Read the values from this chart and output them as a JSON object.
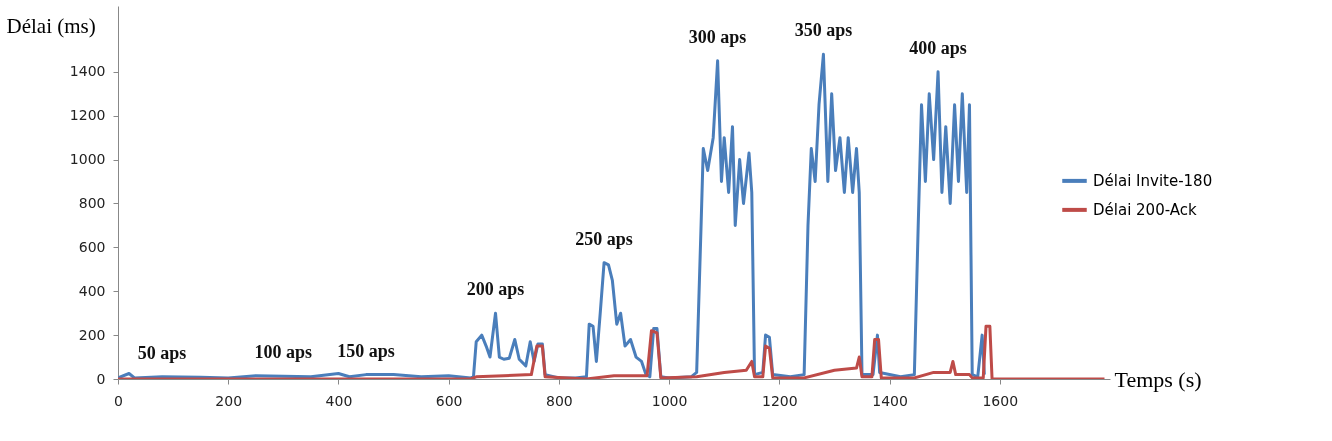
{
  "chart_data": {
    "type": "line",
    "xlabel": "Temps (s)",
    "ylabel": "Délai (ms)",
    "xlim": [
      0,
      1800
    ],
    "xticks": [
      0,
      200,
      400,
      600,
      800,
      1000,
      1200,
      1400,
      1600
    ],
    "ylim": [
      0,
      1700
    ],
    "yticks": [
      0,
      200,
      400,
      600,
      800,
      1000,
      1200,
      1400
    ],
    "grid": false,
    "legend": "right",
    "marker": "none",
    "line_style": "solid",
    "series": [
      {
        "name": "Délai Invite-180",
        "color": "#4a7ebb",
        "x": [
          0,
          20,
          30,
          80,
          150,
          200,
          250,
          300,
          350,
          400,
          420,
          450,
          500,
          550,
          600,
          640,
          645,
          650,
          660,
          668,
          675,
          685,
          692,
          700,
          710,
          720,
          728,
          740,
          748,
          755,
          762,
          770,
          775,
          800,
          830,
          850,
          855,
          862,
          868,
          875,
          882,
          890,
          897,
          905,
          912,
          920,
          930,
          940,
          950,
          958,
          965,
          972,
          978,
          985,
          1000,
          1040,
          1050,
          1058,
          1062,
          1070,
          1080,
          1088,
          1095,
          1100,
          1108,
          1115,
          1120,
          1128,
          1135,
          1145,
          1150,
          1155,
          1170,
          1175,
          1182,
          1188,
          1220,
          1245,
          1252,
          1258,
          1265,
          1272,
          1280,
          1288,
          1295,
          1302,
          1310,
          1318,
          1325,
          1333,
          1340,
          1345,
          1350,
          1370,
          1378,
          1382,
          1420,
          1445,
          1452,
          1458,
          1465,
          1472,
          1480,
          1488,
          1495,
          1502,
          1510,
          1518,
          1525,
          1532,
          1540,
          1545,
          1550,
          1560,
          1568,
          1572
        ],
        "values": [
          5,
          25,
          5,
          10,
          8,
          5,
          15,
          12,
          10,
          25,
          10,
          20,
          20,
          10,
          15,
          5,
          10,
          170,
          200,
          150,
          100,
          300,
          100,
          90,
          95,
          180,
          90,
          60,
          170,
          80,
          160,
          160,
          20,
          5,
          5,
          10,
          250,
          240,
          80,
          300,
          530,
          520,
          450,
          250,
          300,
          150,
          180,
          100,
          80,
          20,
          10,
          230,
          230,
          10,
          5,
          10,
          30,
          700,
          1050,
          950,
          1100,
          1450,
          900,
          1100,
          850,
          1150,
          700,
          1000,
          800,
          1030,
          850,
          20,
          30,
          200,
          190,
          20,
          10,
          20,
          700,
          1050,
          900,
          1250,
          1480,
          900,
          1300,
          950,
          1100,
          850,
          1100,
          850,
          1050,
          850,
          20,
          20,
          200,
          30,
          10,
          20,
          700,
          1250,
          900,
          1300,
          1000,
          1400,
          850,
          1150,
          800,
          1250,
          900,
          1300,
          850,
          1250,
          20,
          10,
          200,
          20
        ]
      },
      {
        "name": "Délai 200-Ack",
        "color": "#be4b48",
        "x": [
          0,
          640,
          650,
          700,
          750,
          760,
          770,
          775,
          850,
          900,
          960,
          968,
          978,
          985,
          1050,
          1100,
          1140,
          1150,
          1155,
          1170,
          1175,
          1182,
          1188,
          1245,
          1300,
          1340,
          1345,
          1350,
          1368,
          1373,
          1380,
          1385,
          1445,
          1480,
          1510,
          1515,
          1520,
          1545,
          1550,
          1570,
          1575,
          1582,
          1586,
          1790
        ],
        "values": [
          0,
          0,
          10,
          15,
          20,
          150,
          150,
          10,
          0,
          15,
          15,
          220,
          210,
          5,
          10,
          30,
          40,
          80,
          10,
          10,
          150,
          140,
          5,
          5,
          40,
          50,
          100,
          10,
          10,
          180,
          180,
          5,
          5,
          30,
          30,
          80,
          20,
          20,
          5,
          5,
          240,
          240,
          0,
          0
        ]
      }
    ],
    "annotations": [
      {
        "text": "50 aps",
        "x": 80,
        "y": 10
      },
      {
        "text": "100 aps",
        "x": 300,
        "y": 12
      },
      {
        "text": "150 aps",
        "x": 450,
        "y": 20
      },
      {
        "text": "200 aps",
        "x": 685,
        "y": 300
      },
      {
        "text": "250 aps",
        "x": 882,
        "y": 530
      },
      {
        "text": "300 aps",
        "x": 1088,
        "y": 1450
      },
      {
        "text": "350 aps",
        "x": 1280,
        "y": 1480
      },
      {
        "text": "400 aps",
        "x": 1488,
        "y": 1400
      }
    ]
  }
}
